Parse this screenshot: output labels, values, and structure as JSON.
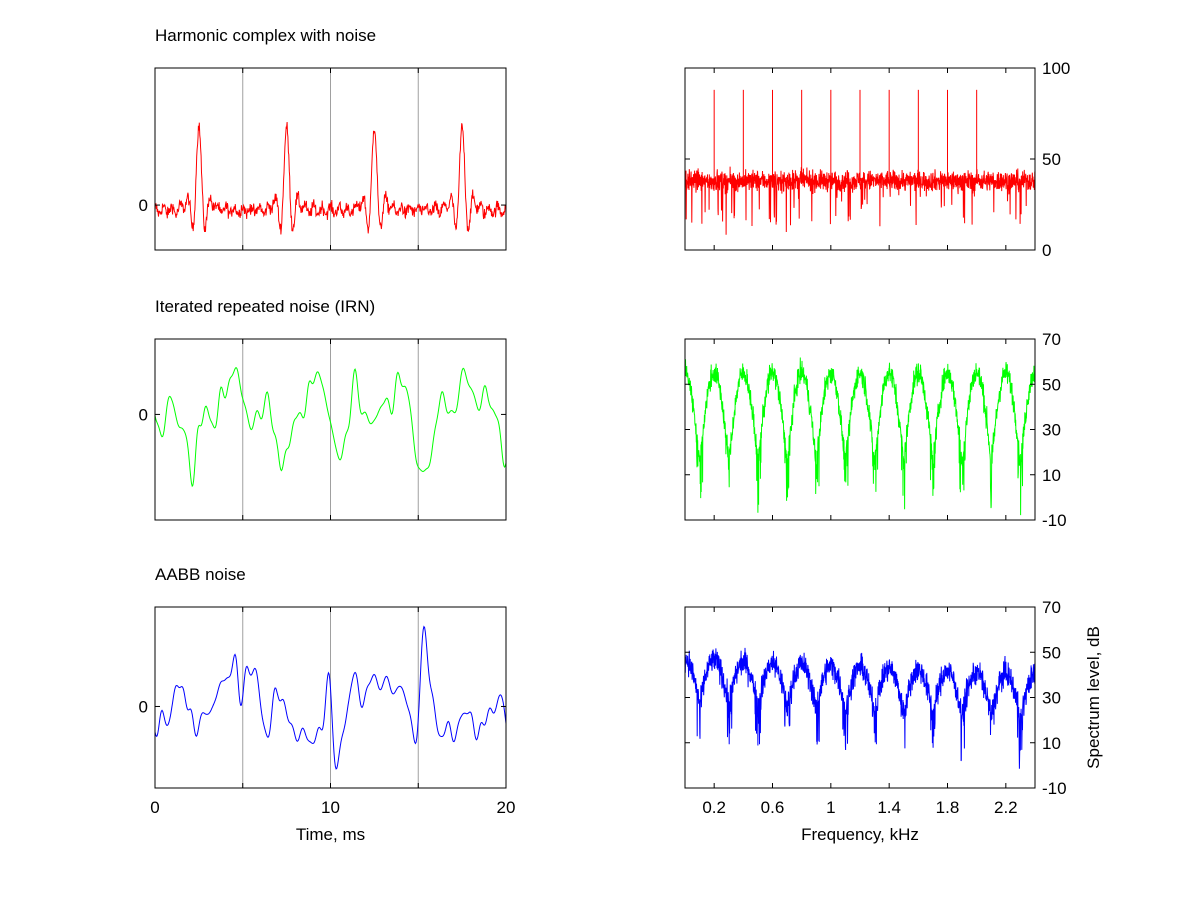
{
  "chart_data": [
    {
      "type": "line",
      "title": "Harmonic complex with noise",
      "panel": "waveform",
      "xlabel": "",
      "ylabel": "",
      "xlim": [
        0,
        20
      ],
      "x_ticks": [
        0,
        5,
        10,
        15,
        20
      ],
      "x_tick_labels": [],
      "y_tick_labels": [
        "0"
      ],
      "y_ticks": [
        0
      ],
      "grid_x": [
        5,
        10,
        15
      ],
      "color": "#ff0000",
      "pulse_times_ms": [
        2.5,
        7.5,
        12.5,
        17.5
      ],
      "pulse_peak": 2.0,
      "noise_amplitude": 0.25
    },
    {
      "type": "line",
      "title": "",
      "panel": "spectrum",
      "xlim": [
        0,
        2.4
      ],
      "x_ticks": [
        0.2,
        0.6,
        1,
        1.4,
        1.8,
        2.2
      ],
      "x_tick_labels": [],
      "ylim": [
        0,
        100
      ],
      "y_ticks": [
        0,
        50,
        100
      ],
      "y_tick_labels": [
        "0",
        "50",
        "100"
      ],
      "y_axis_side": "right",
      "color": "#ff0000",
      "harmonics_khz": [
        0.2,
        0.4,
        0.6,
        0.8,
        1.0,
        1.2,
        1.4,
        1.6,
        1.8,
        2.0
      ],
      "harmonic_level_db": 88,
      "noise_floor_db": 38
    },
    {
      "type": "line",
      "title": "Iterated repeated noise (IRN)",
      "panel": "waveform",
      "xlim": [
        0,
        20
      ],
      "x_ticks": [
        0,
        5,
        10,
        15,
        20
      ],
      "x_tick_labels": [],
      "y_ticks": [
        0
      ],
      "y_tick_labels": [
        "0"
      ],
      "grid_x": [
        5,
        10,
        15
      ],
      "color": "#00ff00"
    },
    {
      "type": "line",
      "title": "",
      "panel": "spectrum",
      "xlim": [
        0,
        2.4
      ],
      "x_ticks": [
        0.2,
        0.6,
        1,
        1.4,
        1.8,
        2.2
      ],
      "x_tick_labels": [],
      "ylim": [
        -10,
        70
      ],
      "y_ticks": [
        -10,
        10,
        30,
        50,
        70
      ],
      "y_tick_labels": [
        "-10",
        "10",
        "30",
        "50",
        "70"
      ],
      "y_axis_side": "right",
      "color": "#00ff00",
      "peak_spacing_khz": 0.2,
      "peak_level_db": 55,
      "valley_level_db": 15
    },
    {
      "type": "line",
      "title": "AABB noise",
      "panel": "waveform",
      "xlabel": "Time, ms",
      "xlim": [
        0,
        20
      ],
      "x_ticks": [
        0,
        5,
        10,
        15,
        20
      ],
      "x_tick_labels": [
        "0",
        "10",
        "20"
      ],
      "x_tick_label_values": [
        0,
        10,
        20
      ],
      "y_ticks": [
        0
      ],
      "y_tick_labels": [
        "0"
      ],
      "grid_x": [
        5,
        10,
        15
      ],
      "color": "#0000ff"
    },
    {
      "type": "line",
      "title": "",
      "panel": "spectrum",
      "xlabel": "Frequency, kHz",
      "ylabel": "Spectrum level, dB",
      "xlim": [
        0,
        2.4
      ],
      "x_ticks": [
        0.2,
        0.6,
        1,
        1.4,
        1.8,
        2.2
      ],
      "x_tick_labels": [
        "0.2",
        "0.6",
        "1",
        "1.4",
        "1.8",
        "2.2"
      ],
      "x_tick_label_values": [
        0.2,
        0.6,
        1,
        1.4,
        1.8,
        2.2
      ],
      "ylim": [
        -10,
        70
      ],
      "y_ticks": [
        -10,
        10,
        30,
        50,
        70
      ],
      "y_tick_labels": [
        "-10",
        "10",
        "30",
        "50",
        "70"
      ],
      "y_axis_side": "right",
      "color": "#0000ff",
      "peak_spacing_khz": 0.2,
      "peak_level_db": 47,
      "valley_level_db": 28
    }
  ]
}
